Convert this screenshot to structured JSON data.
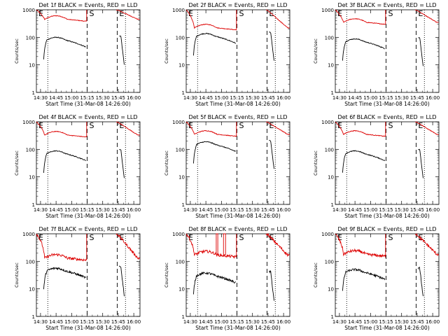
{
  "chart_data": {
    "type": "line",
    "scale": "log",
    "ylim": [
      1,
      1000
    ],
    "xlim_minutes": [
      0,
      100
    ],
    "xlabel": "Start Time (31-Mar-08 14:26:00)",
    "ylabel": "Counts/sec",
    "xtick_labels": [
      "14:30",
      "14:45",
      "15:00",
      "15:15",
      "15:30",
      "15:45",
      "16:00"
    ],
    "ytick_labels": [
      "1",
      "10",
      "100",
      "1000"
    ],
    "series_colors": {
      "events": "#000000",
      "lld": "#dd0000"
    },
    "markers": {
      "e_label": "E",
      "s_label": "S"
    },
    "panels": [
      {
        "title": "Det 1f BLACK = Events, RED = LLD",
        "red_low": 450,
        "black_level": 80,
        "style": "a"
      },
      {
        "title": "Det 2f BLACK = Events, RED = LLD",
        "red_low": 220,
        "black_level": 110,
        "style": "a"
      },
      {
        "title": "Det 3f BLACK = Events, RED = LLD",
        "red_low": 350,
        "black_level": 70,
        "style": "a"
      },
      {
        "title": "Det 4f BLACK = Events, RED = LLD",
        "red_low": 330,
        "black_level": 70,
        "style": "a"
      },
      {
        "title": "Det 5f BLACK = Events, RED = LLD",
        "red_low": 350,
        "black_level": 150,
        "style": "a"
      },
      {
        "title": "Det 6f BLACK = Events, RED = LLD",
        "red_low": 350,
        "black_level": 70,
        "style": "a"
      },
      {
        "title": "Det 7f BLACK = Events, RED = LLD",
        "red_low": 130,
        "black_level": 45,
        "style": "noisy"
      },
      {
        "title": "Det 8f BLACK = Events, RED = LLD",
        "red_low": 170,
        "black_level": 30,
        "style": "noisy"
      },
      {
        "title": "Det 9f BLACK = Events, RED = LLD",
        "red_low": 180,
        "black_level": 40,
        "style": "noisy"
      }
    ]
  }
}
